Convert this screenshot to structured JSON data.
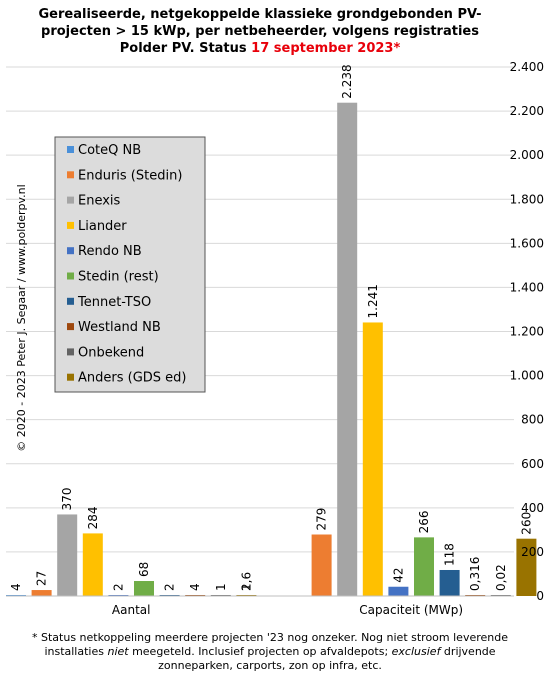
{
  "title": {
    "line1": "Gerealiseerde, netgekoppelde klassieke grondgebonden PV-",
    "line2": "projecten > 15 kWp, per netbeheerder, volgens registraties",
    "line3_prefix": "Polder PV. Status ",
    "line3_highlight": "17 september 2023*"
  },
  "copyright": "© 2020 - 2023  Peter J. Segaar / www.polderpv.nl",
  "footnote": {
    "part1": "* Status netkoppeling meerdere projecten '23 nog onzeker. Nog niet stroom leverende installaties ",
    "italic1": "niet",
    "part2": " meegeteld. Inclusief projecten op afvaldepots; ",
    "italic2": "exclusief",
    "part3": " drijvende zonneparken, carports, zon op infra, etc."
  },
  "chart_data": {
    "type": "bar",
    "categories": [
      "Aantal",
      "Capaciteit (MWp)"
    ],
    "series": [
      {
        "name": "CoteQ NB",
        "color": "#4a90d9",
        "values": [
          4,
          0
        ],
        "labels": [
          "4",
          ""
        ]
      },
      {
        "name": "Enduris (Stedin)",
        "color": "#ed7d31",
        "values": [
          27,
          279
        ],
        "labels": [
          "27",
          "279"
        ]
      },
      {
        "name": "Enexis",
        "color": "#a5a5a5",
        "values": [
          370,
          2238
        ],
        "labels": [
          "370",
          "2.238"
        ]
      },
      {
        "name": "Liander",
        "color": "#ffc000",
        "values": [
          284,
          1241
        ],
        "labels": [
          "284",
          "1.241"
        ]
      },
      {
        "name": "Rendo NB",
        "color": "#4472c4",
        "values": [
          2,
          42
        ],
        "labels": [
          "2",
          "42"
        ]
      },
      {
        "name": "Stedin (rest)",
        "color": "#70ad47",
        "values": [
          68,
          266
        ],
        "labels": [
          "68",
          "266"
        ]
      },
      {
        "name": "Tennet-TSO",
        "color": "#255e91",
        "values": [
          2,
          118
        ],
        "labels": [
          "2",
          "118"
        ]
      },
      {
        "name": "Westland NB",
        "color": "#9e480e",
        "values": [
          4,
          0.316
        ],
        "labels": [
          "4",
          "0,316"
        ]
      },
      {
        "name": "Onbekend",
        "color": "#636363",
        "values": [
          1,
          0.02
        ],
        "labels": [
          "1",
          "0,02"
        ]
      },
      {
        "name": "Anders (GDS ed)",
        "color": "#997300",
        "values": [
          2,
          260
        ],
        "labels": [
          "2",
          "260"
        ]
      }
    ],
    "extra_labels": [
      {
        "category": 0,
        "series": 9,
        "label": "1,6",
        "value": 1.6
      }
    ],
    "ylim": [
      0,
      2400
    ],
    "yticks": [
      0,
      200,
      400,
      600,
      800,
      1000,
      1200,
      1400,
      1600,
      1800,
      2000,
      2200,
      2400
    ],
    "ytick_labels": [
      "0",
      "200",
      "400",
      "600",
      "800",
      "1.000",
      "1.200",
      "1.400",
      "1.600",
      "1.800",
      "2.000",
      "2.200",
      "2.400"
    ],
    "yaxis_side": "right",
    "grid": true,
    "legend_position": "top-left"
  }
}
